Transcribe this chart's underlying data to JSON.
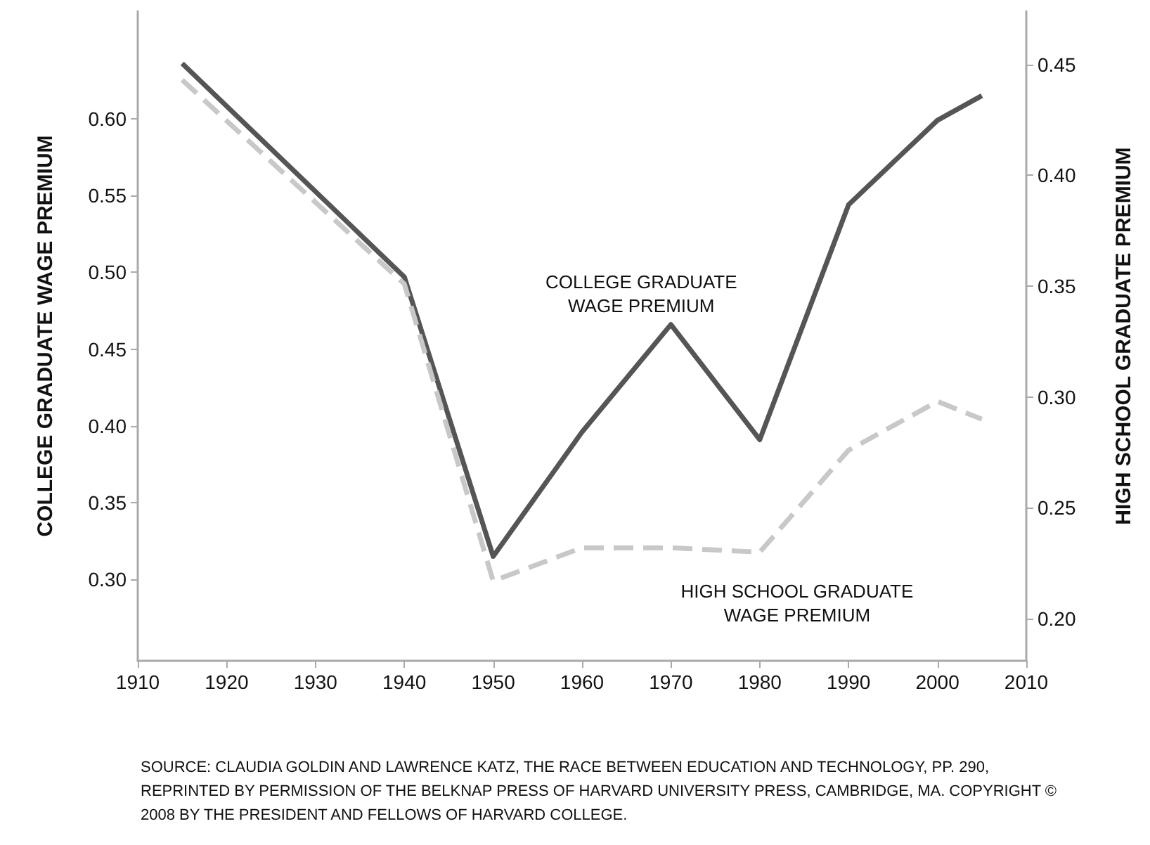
{
  "chart_data": {
    "type": "line",
    "x": [
      1915,
      1940,
      1950,
      1960,
      1970,
      1980,
      1990,
      2000,
      2005
    ],
    "series": [
      {
        "name": "COLLEGE GRADUATE WAGE PREMIUM",
        "color": "#555555",
        "line_style": "solid",
        "values": [
          0.636,
          0.497,
          0.315,
          0.396,
          0.466,
          0.391,
          0.544,
          0.599,
          0.615
        ]
      },
      {
        "name": "HIGH SCHOOL GRADUATE WAGE PREMIUM",
        "color": "#c8c8c8",
        "line_style": "dashed",
        "axis": "y2",
        "values": [
          0.443,
          0.351,
          0.217,
          0.232,
          0.232,
          0.23,
          0.276,
          0.298,
          0.29
        ]
      }
    ],
    "ylabel": "COLLEGE GRADUATE WAGE PREMIUM",
    "y2label": "HIGH SCHOOL GRADUATE PREMIUM",
    "xlim": [
      1910,
      2010
    ],
    "xticks": [
      1910,
      1920,
      1930,
      1940,
      1950,
      1960,
      1970,
      1980,
      1990,
      2000,
      2010
    ],
    "ylim": [
      0.247,
      0.67
    ],
    "yticks": [
      {
        "value": 0.3,
        "label": "0.30"
      },
      {
        "value": 0.35,
        "label": "0.35"
      },
      {
        "value": 0.4,
        "label": "0.40"
      },
      {
        "value": 0.45,
        "label": "0.45"
      },
      {
        "value": 0.5,
        "label": "0.50"
      },
      {
        "value": 0.55,
        "label": "0.55"
      },
      {
        "value": 0.6,
        "label": "0.60"
      }
    ],
    "y2lim": [
      0.181,
      0.474
    ],
    "y2ticks": [
      {
        "value": 0.2,
        "label": "0.20"
      },
      {
        "value": 0.25,
        "label": "0.25"
      },
      {
        "value": 0.3,
        "label": "0.30"
      },
      {
        "value": 0.35,
        "label": "0.35"
      },
      {
        "value": 0.4,
        "label": "0.40"
      },
      {
        "value": 0.45,
        "label": "0.45"
      }
    ],
    "grid": false,
    "legend": false,
    "marker": "none",
    "annotations": [
      "SOURCE: CLAUDIA GOLDIN AND LAWRENCE KATZ, THE RACE BETWEEN EDUCATION AND TECHNOLOGY, PP. 290, REPRINTED BY PERMISSION OF THE BELKNAP PRESS OF HARVARD UNIVERSITY PRESS, CAMBRIDGE, MA. COPYRIGHT © 2008 BY THE PRESIDENT AND FELLOWS OF HARVARD COLLEGE."
    ]
  }
}
